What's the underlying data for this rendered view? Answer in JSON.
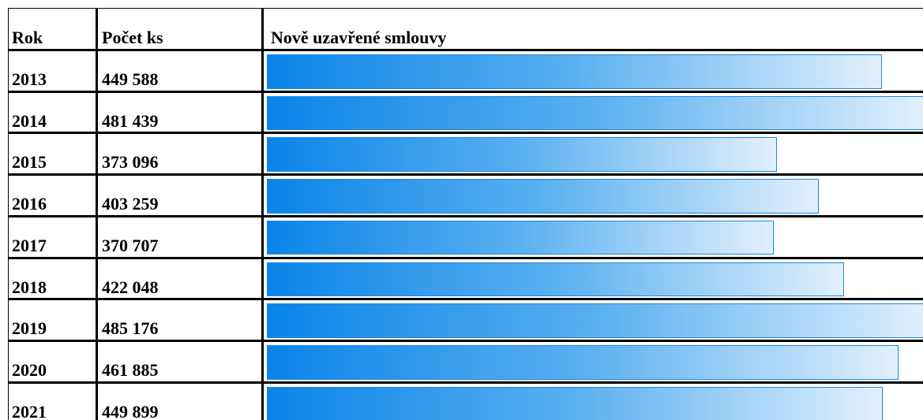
{
  "table": {
    "header": [
      "Rok",
      "Počet ks",
      "Nově uzavřené smlouvy"
    ],
    "rows": [
      {
        "year": "2013",
        "count": {
          "value": 449588,
          "label": "449 588"
        }
      },
      {
        "year": "2014",
        "count": {
          "value": 481439,
          "label": "481 439"
        }
      },
      {
        "year": "2015",
        "count": {
          "value": 373096,
          "label": "373 096"
        }
      },
      {
        "year": "2016",
        "count": {
          "value": 403259,
          "label": "403 259"
        }
      },
      {
        "year": "2017",
        "count": {
          "value": 370707,
          "label": "370 707"
        }
      },
      {
        "year": "2018",
        "count": {
          "value": 422048,
          "label": "422 048"
        }
      },
      {
        "year": "2019",
        "count": {
          "value": 485176,
          "label": "485 176"
        }
      },
      {
        "year": "2020",
        "count": {
          "value": 461885,
          "label": "461 885"
        }
      },
      {
        "year": "2021",
        "count": {
          "value": 449899,
          "label": "449 899"
        }
      }
    ]
  }
}
